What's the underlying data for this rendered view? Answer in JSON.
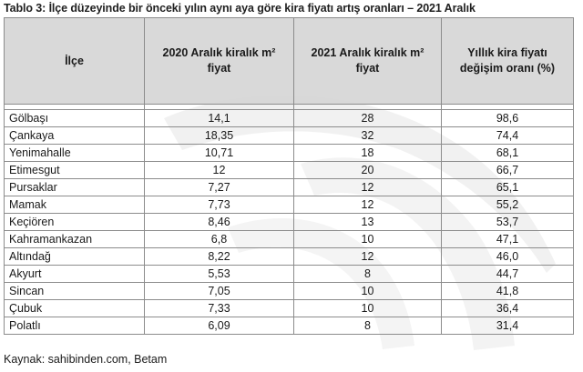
{
  "caption": "Tablo 3: İlçe düzeyinde bir önceki yılın aynı aya göre kira fiyatı artış oranları – 2021 Aralık",
  "table": {
    "headers": {
      "col1": "İlçe",
      "col2_line1": "2020 Aralık kiralık m²",
      "col2_line2": "fiyat",
      "col3_line1": "2021 Aralık kiralık m²",
      "col3_line2": "fiyat",
      "col4_line1": "Yıllık kira fiyatı",
      "col4_line2": "değişim oranı (%)"
    },
    "rows": [
      {
        "district": "Gölbaşı",
        "price_2020": "14,1",
        "price_2021": "28",
        "change": "98,6"
      },
      {
        "district": "Çankaya",
        "price_2020": "18,35",
        "price_2021": "32",
        "change": "74,4"
      },
      {
        "district": "Yenimahalle",
        "price_2020": "10,71",
        "price_2021": "18",
        "change": "68,1"
      },
      {
        "district": "Etimesgut",
        "price_2020": "12",
        "price_2021": "20",
        "change": "66,7"
      },
      {
        "district": "Pursaklar",
        "price_2020": "7,27",
        "price_2021": "12",
        "change": "65,1"
      },
      {
        "district": "Mamak",
        "price_2020": "7,73",
        "price_2021": "12",
        "change": "55,2"
      },
      {
        "district": "Keçiören",
        "price_2020": "8,46",
        "price_2021": "13",
        "change": "53,7"
      },
      {
        "district": "Kahramankazan",
        "price_2020": "6,8",
        "price_2021": "10",
        "change": "47,1"
      },
      {
        "district": "Altındağ",
        "price_2020": "8,22",
        "price_2021": "12",
        "change": "46,0"
      },
      {
        "district": "Akyurt",
        "price_2020": "5,53",
        "price_2021": "8",
        "change": "44,7"
      },
      {
        "district": "Sincan",
        "price_2020": "7,05",
        "price_2021": "10",
        "change": "41,8"
      },
      {
        "district": "Çubuk",
        "price_2020": "7,33",
        "price_2021": "10",
        "change": "36,4"
      },
      {
        "district": "Polatlı",
        "price_2020": "6,09",
        "price_2021": "8",
        "change": "31,4"
      }
    ]
  },
  "source": "Kaynak: sahibinden.com, Betam"
}
